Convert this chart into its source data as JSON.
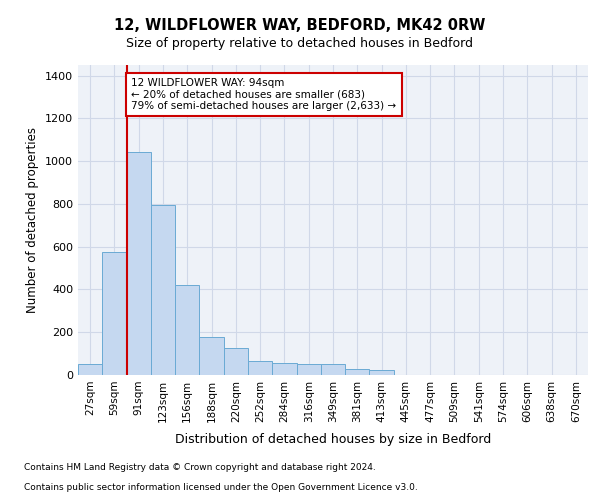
{
  "title1": "12, WILDFLOWER WAY, BEDFORD, MK42 0RW",
  "title2": "Size of property relative to detached houses in Bedford",
  "xlabel": "Distribution of detached houses by size in Bedford",
  "ylabel": "Number of detached properties",
  "categories": [
    "27sqm",
    "59sqm",
    "91sqm",
    "123sqm",
    "156sqm",
    "188sqm",
    "220sqm",
    "252sqm",
    "284sqm",
    "316sqm",
    "349sqm",
    "381sqm",
    "413sqm",
    "445sqm",
    "477sqm",
    "509sqm",
    "541sqm",
    "574sqm",
    "606sqm",
    "638sqm",
    "670sqm"
  ],
  "values": [
    50,
    575,
    1045,
    795,
    420,
    180,
    125,
    65,
    55,
    50,
    50,
    30,
    25,
    0,
    0,
    0,
    0,
    0,
    0,
    0,
    0
  ],
  "bar_color": "#c5d8f0",
  "bar_edge_color": "#6aaad4",
  "red_line_index": 2,
  "annotation_text": "12 WILDFLOWER WAY: 94sqm\n← 20% of detached houses are smaller (683)\n79% of semi-detached houses are larger (2,633) →",
  "annotation_box_color": "#ffffff",
  "annotation_box_edge_color": "#cc0000",
  "ylim": [
    0,
    1450
  ],
  "yticks": [
    0,
    200,
    400,
    600,
    800,
    1000,
    1200,
    1400
  ],
  "grid_color": "#d0d8e8",
  "background_color": "#eef2f8",
  "footer1": "Contains HM Land Registry data © Crown copyright and database right 2024.",
  "footer2": "Contains public sector information licensed under the Open Government Licence v3.0."
}
